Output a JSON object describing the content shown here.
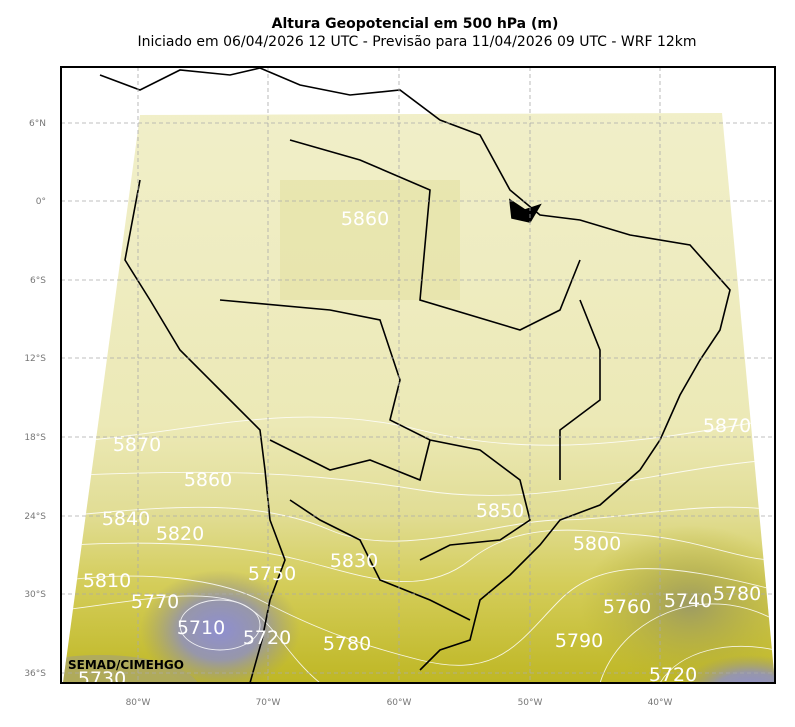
{
  "header": {
    "title": "Altura Geopotencial em 500 hPa (m)",
    "subtitle": "Iniciado em 06/04/2026 12 UTC - Previsão para 11/04/2026 09 UTC - WRF 12km"
  },
  "map": {
    "latitude_labels": [
      "6°N",
      "0°",
      "6°S",
      "12°S",
      "18°S",
      "24°S",
      "30°S",
      "36°S"
    ],
    "longitude_labels": [
      "80°W",
      "70°W",
      "60°W",
      "50°W",
      "40°W"
    ],
    "contour_labels": [
      5860,
      5870,
      5870,
      5860,
      5840,
      5820,
      5850,
      5800,
      5830,
      5750,
      5810,
      5770,
      5780,
      5760,
      5740,
      5710,
      5720,
      5780,
      5790,
      5730,
      5720
    ],
    "credit": "SEMAD/CIMEHGO"
  }
}
